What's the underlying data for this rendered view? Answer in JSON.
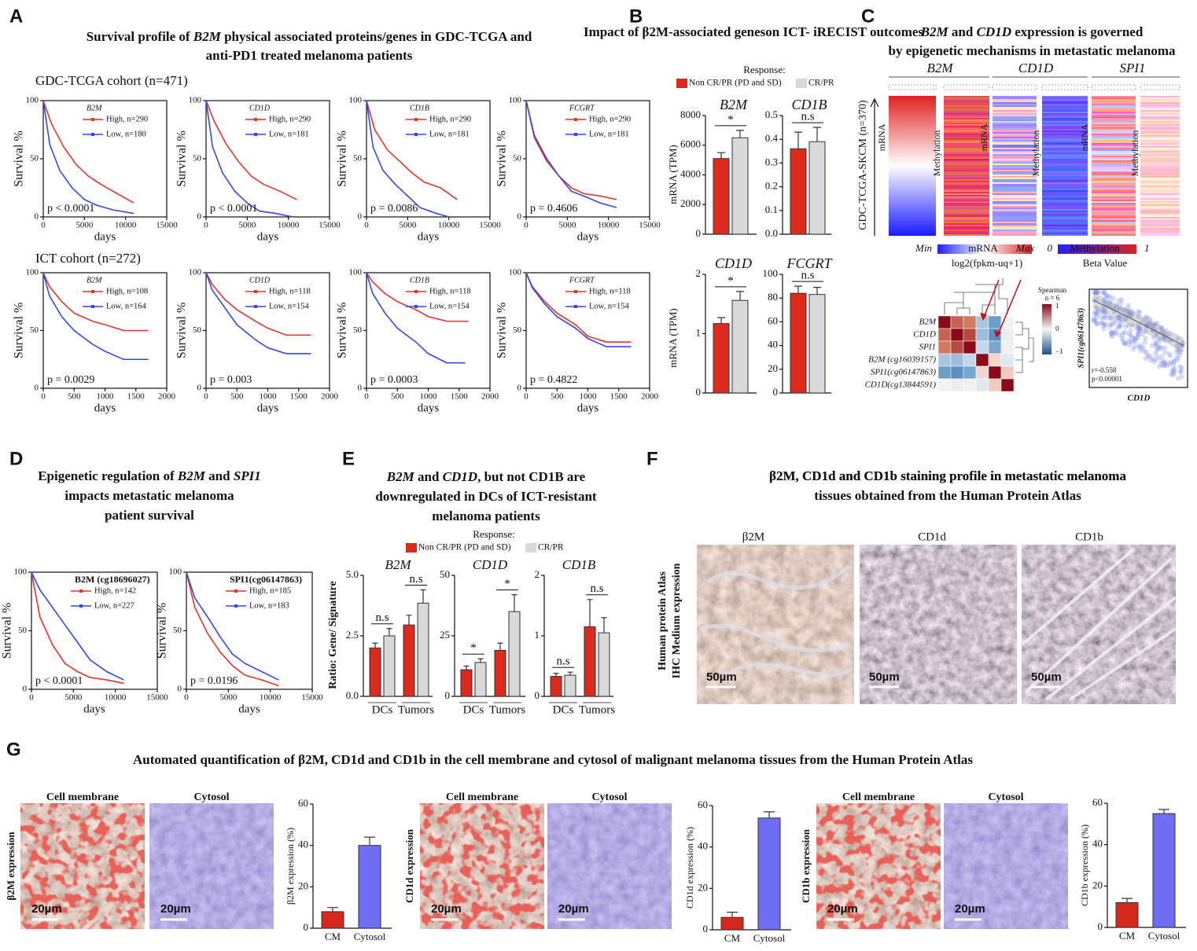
{
  "panel_labels": [
    "A",
    "B",
    "C",
    "D",
    "E",
    "F",
    "G"
  ],
  "km": {
    "ylabel": "Survival %",
    "xlabel": "days",
    "ylim": [
      0,
      100
    ],
    "yticks": [
      0,
      50,
      100
    ],
    "high_color": "#e5332a",
    "low_color": "#3448e6"
  },
  "A": {
    "title": [
      [
        "Survival profile of ",
        "B2M",
        " physical associated proteins/genes in  GDC-TCGA and"
      ],
      [
        "anti-PD1 treated melanoma patients"
      ]
    ],
    "cohorts": [
      "GDC-TCGA cohort (n=471)",
      "ICT cohort (n=272)"
    ],
    "plots": [
      {
        "gene": "B2M",
        "xlim": [
          0,
          15000
        ],
        "xticks": [
          0,
          5000,
          10000,
          15000
        ],
        "p": "p < 0.0001",
        "high": {
          "name": "High, n=290",
          "x": [
            0,
            1000,
            2500,
            4000,
            5500,
            7000,
            9000,
            11000
          ],
          "y": [
            100,
            80,
            60,
            45,
            35,
            28,
            20,
            12
          ]
        },
        "low": {
          "name": "Low, n=180",
          "x": [
            0,
            800,
            2000,
            3500,
            5000,
            6500,
            8500,
            11000
          ],
          "y": [
            100,
            62,
            40,
            25,
            15,
            10,
            6,
            3
          ]
        }
      },
      {
        "gene": "CD1D",
        "xlim": [
          0,
          15000
        ],
        "xticks": [
          0,
          5000,
          10000,
          15000
        ],
        "p": "p < 0.0001",
        "high": {
          "name": "High, n=290",
          "x": [
            0,
            1000,
            2500,
            4000,
            5500,
            7000,
            9000,
            11000
          ],
          "y": [
            100,
            82,
            62,
            47,
            35,
            28,
            22,
            15
          ]
        },
        "low": {
          "name": "Low, n=181",
          "x": [
            0,
            800,
            2000,
            3500,
            5000,
            6500,
            8500,
            10500
          ],
          "y": [
            100,
            60,
            38,
            22,
            12,
            5,
            3,
            0
          ]
        }
      },
      {
        "gene": "CD1B",
        "xlim": [
          0,
          15000
        ],
        "xticks": [
          0,
          5000,
          10000,
          15000
        ],
        "p": "p = 0.0086",
        "high": {
          "name": "High, n=290",
          "x": [
            0,
            1000,
            2500,
            4000,
            5500,
            7000,
            9000,
            11000
          ],
          "y": [
            100,
            75,
            58,
            48,
            38,
            30,
            25,
            15
          ]
        },
        "low": {
          "name": "Low, n=181",
          "x": [
            0,
            800,
            2000,
            3500,
            5000,
            6500,
            8500,
            10000
          ],
          "y": [
            100,
            60,
            40,
            28,
            18,
            8,
            3,
            0
          ]
        }
      },
      {
        "gene": "FCGRT",
        "xlim": [
          0,
          15000
        ],
        "xticks": [
          0,
          5000,
          10000,
          15000
        ],
        "p": "p = 0.4606",
        "high": {
          "name": "High, n=290",
          "x": [
            0,
            1000,
            2500,
            4000,
            5500,
            7000,
            9000,
            11000
          ],
          "y": [
            100,
            68,
            48,
            35,
            25,
            20,
            18,
            15
          ]
        },
        "low": {
          "name": "Low, n=181",
          "x": [
            0,
            1000,
            2500,
            4000,
            5500,
            7000,
            9000,
            11000
          ],
          "y": [
            100,
            70,
            50,
            35,
            22,
            18,
            12,
            8
          ]
        }
      },
      {
        "gene": "B2M",
        "xlim": [
          0,
          2000
        ],
        "xticks": [
          0,
          500,
          1000,
          1500,
          2000
        ],
        "p": "p = 0.0029",
        "high": {
          "name": "High, n=108",
          "x": [
            0,
            100,
            300,
            500,
            800,
            1000,
            1300,
            1700
          ],
          "y": [
            100,
            88,
            75,
            65,
            58,
            55,
            50,
            50
          ]
        },
        "low": {
          "name": "Low, n=164",
          "x": [
            0,
            100,
            300,
            500,
            800,
            1000,
            1300,
            1700
          ],
          "y": [
            100,
            80,
            62,
            50,
            38,
            32,
            25,
            25
          ]
        }
      },
      {
        "gene": "CD1D",
        "xlim": [
          0,
          2000
        ],
        "xticks": [
          0,
          500,
          1000,
          1500,
          2000
        ],
        "p": "p = 0.003",
        "high": {
          "name": "High, n=118",
          "x": [
            0,
            100,
            300,
            500,
            800,
            1000,
            1300,
            1700
          ],
          "y": [
            100,
            90,
            77,
            68,
            58,
            52,
            46,
            46
          ]
        },
        "low": {
          "name": "Low, n=154",
          "x": [
            0,
            100,
            300,
            500,
            800,
            1000,
            1300,
            1700
          ],
          "y": [
            100,
            85,
            70,
            55,
            42,
            35,
            30,
            30
          ]
        }
      },
      {
        "gene": "CD1B",
        "xlim": [
          0,
          2000
        ],
        "xticks": [
          0,
          500,
          1000,
          1500,
          2000
        ],
        "p": "p = 0.0003",
        "high": {
          "name": "High, n=118",
          "x": [
            0,
            100,
            300,
            500,
            800,
            1000,
            1300,
            1650
          ],
          "y": [
            100,
            92,
            82,
            75,
            68,
            62,
            58,
            58
          ]
        },
        "low": {
          "name": "Low, n=154",
          "x": [
            0,
            100,
            300,
            500,
            800,
            1000,
            1300,
            1600
          ],
          "y": [
            100,
            82,
            65,
            52,
            40,
            30,
            22,
            22
          ]
        }
      },
      {
        "gene": "FCGRT",
        "xlim": [
          0,
          2000
        ],
        "xticks": [
          0,
          500,
          1000,
          1500,
          2000
        ],
        "p": "p = 0.4822",
        "high": {
          "name": "High, n=118",
          "x": [
            0,
            100,
            300,
            500,
            800,
            1000,
            1300,
            1700
          ],
          "y": [
            100,
            88,
            75,
            65,
            55,
            45,
            40,
            40
          ]
        },
        "low": {
          "name": "Low, n=154",
          "x": [
            0,
            100,
            300,
            500,
            800,
            1000,
            1300,
            1700
          ],
          "y": [
            100,
            87,
            73,
            62,
            52,
            43,
            36,
            36
          ]
        }
      }
    ]
  },
  "B": {
    "title": [
      "Impact of β2M-associated genes",
      "on ICT- iRECIST outcomes"
    ],
    "response": "Response:",
    "legend": [
      "Non CR/PR (PD and SD)",
      "CR/PR"
    ],
    "colors": [
      "#dd2a1f",
      "#d9d9d9"
    ],
    "ylabel": "mRNA (TPM)",
    "plots": [
      {
        "gene": "B2M",
        "ylim": [
          0,
          8000
        ],
        "yticks": [
          0,
          2000,
          4000,
          6000,
          8000
        ],
        "values": [
          5100,
          6500
        ],
        "errors": [
          400,
          500
        ],
        "sig": "*"
      },
      {
        "gene": "CD1B",
        "ylim": [
          0,
          0.5
        ],
        "yticks": [
          {
            "value": 0,
            "label": "0.0"
          },
          0.1,
          0.2,
          0.3,
          0.4,
          0.5
        ],
        "values": [
          0.36,
          0.39
        ],
        "errors": [
          0.07,
          0.06
        ],
        "sig": "n.s"
      },
      {
        "gene": "CD1D",
        "ylim": [
          0,
          2
        ],
        "yticks": [
          0,
          1,
          2
        ],
        "values": [
          1.17,
          1.56
        ],
        "errors": [
          0.1,
          0.15
        ],
        "sig": "*"
      },
      {
        "gene": "FCGRT",
        "ylim": [
          0,
          100
        ],
        "yticks": [
          0,
          20,
          40,
          60,
          80,
          100
        ],
        "values": [
          84,
          83
        ],
        "errors": [
          6,
          6
        ],
        "sig": "n.s"
      }
    ]
  },
  "C": {
    "title": [
      [
        "B2M",
        " and ",
        "CD1D",
        " expression is governed"
      ],
      [
        "by epigenetic mechanisms in metastatic melanoma"
      ]
    ],
    "genes": [
      "B2M",
      "CD1D",
      "SPI1"
    ],
    "cohort": "GDC-TCGA-SKCM (n=370)",
    "mrna": "mRNA",
    "methylation": "Methylation",
    "legend_mrna": [
      "Min",
      "mRNA",
      "Max",
      "log2(fpkm-uq+1)"
    ],
    "legend_meth": [
      "0",
      "Methylation",
      "1",
      "Beta Value"
    ],
    "corr_rows": [
      "B2M",
      "CD1D",
      "SPI1",
      "B2M (cg16039157)",
      "SPI1(cg06147863)",
      "CD1D(cg13844591)"
    ],
    "corr_legend": [
      "Spearman",
      "n = 6",
      "1",
      "0",
      "−1"
    ],
    "scatter": {
      "ylabel": "SPI1(cg06147863)",
      "xlabel": "CD1D",
      "r": "r=-0.558",
      "p": "p<0.00001"
    }
  },
  "D": {
    "title": [
      [
        "Epigenetic regulation of ",
        "B2M",
        " and ",
        "SPI1"
      ],
      [
        "impacts metastatic melanoma"
      ],
      [
        "patient survival"
      ]
    ],
    "plots": [
      {
        "gene": "B2M (cg18696027)",
        "xlim": [
          0,
          15000
        ],
        "xticks": [
          0,
          5000,
          10000,
          15000
        ],
        "p": "p < 0.0001",
        "high": {
          "name": "High, n=142",
          "x": [
            0,
            1000,
            2500,
            4000,
            5500,
            7000,
            9000,
            11000
          ],
          "y": [
            100,
            62,
            38,
            22,
            15,
            10,
            8,
            5
          ]
        },
        "low": {
          "name": "Low, n=227",
          "x": [
            0,
            1000,
            2500,
            4000,
            5500,
            7000,
            9000,
            11000
          ],
          "y": [
            100,
            85,
            70,
            55,
            40,
            25,
            15,
            8
          ]
        }
      },
      {
        "gene": "SPI1(cg06147863)",
        "xlim": [
          0,
          15000
        ],
        "xticks": [
          0,
          5000,
          10000,
          15000
        ],
        "p": "p = 0.0196",
        "high": {
          "name": "High, n=185",
          "x": [
            0,
            1000,
            2500,
            4000,
            5500,
            7000,
            9000,
            11000
          ],
          "y": [
            100,
            70,
            48,
            32,
            20,
            12,
            8,
            3
          ]
        },
        "low": {
          "name": "Low, n=183",
          "x": [
            0,
            1000,
            2500,
            4000,
            5500,
            7000,
            9000,
            11000
          ],
          "y": [
            100,
            78,
            62,
            45,
            30,
            22,
            15,
            8
          ]
        }
      }
    ]
  },
  "E": {
    "title": [
      [
        "B2M",
        " and ",
        "CD1D",
        ", but not CD1B are"
      ],
      [
        "downregulated in DCs of  ICT-resistant"
      ],
      [
        "melanoma patients"
      ]
    ],
    "response": "Response:",
    "legend": [
      "Non CR/PR (PD and SD)",
      "CR/PR"
    ],
    "colors": [
      "#dd2a1f",
      "#d9d9d9"
    ],
    "ylabel": "Ratio: Gene/ Signature",
    "groups": [
      "DCs",
      "Tumors"
    ],
    "plots": [
      {
        "gene": "B2M",
        "ylim": [
          0,
          5
        ],
        "yticks": [
          {
            "value": 0,
            "label": "0.0"
          },
          {
            "value": 2.5,
            "label": "2.5"
          },
          {
            "value": 5,
            "label": "5.0"
          }
        ],
        "values": [
          [
            2.0,
            2.5
          ],
          [
            2.95,
            3.85
          ]
        ],
        "errors": [
          [
            0.2,
            0.3
          ],
          [
            0.4,
            0.55
          ]
        ],
        "sig": [
          "n.s",
          "n.s"
        ]
      },
      {
        "gene": "CD1D",
        "ylim": [
          0,
          50
        ],
        "yticks": [
          0,
          25,
          50
        ],
        "values": [
          [
            11,
            14
          ],
          [
            19,
            35
          ]
        ],
        "errors": [
          [
            1.5,
            1.5
          ],
          [
            3,
            7
          ]
        ],
        "sig": [
          "*",
          "*"
        ]
      },
      {
        "gene": "CD1B",
        "ylim": [
          0,
          2
        ],
        "yticks": [
          0,
          1,
          2
        ],
        "values": [
          [
            0.33,
            0.35
          ],
          [
            1.15,
            1.05
          ]
        ],
        "errors": [
          [
            0.05,
            0.05
          ],
          [
            0.45,
            0.25
          ]
        ],
        "sig": [
          "n.s",
          "n.s"
        ]
      }
    ]
  },
  "F": {
    "title": [
      "β2M, CD1d and CD1b staining profile in metastatic melanoma",
      "tissues obtained from the Human Protein Atlas"
    ],
    "images": [
      "β2M",
      "CD1d",
      "CD1b"
    ],
    "side": [
      "Human protein Atlas",
      "IHC Medium expression"
    ],
    "scale": "50µm"
  },
  "G": {
    "title": "Automated quantification of β2M, CD1d and CD1b in the cell membrane and cytosol of malignant melanoma tissues from the Human Protein Atlas",
    "image_titles": [
      "Cell membrane",
      "Cytosol"
    ],
    "scale": "20µm",
    "categories": [
      "CM",
      "Cytosol"
    ],
    "colors": [
      "#d7281d",
      "#6e6ef2"
    ],
    "ylim": [
      0,
      60
    ],
    "yticks": [
      0,
      20,
      40,
      60
    ],
    "plots": [
      {
        "row_label": "β2M expression",
        "ylabel": "β2M expression (%)",
        "values": [
          8,
          40
        ],
        "errors": [
          2,
          4
        ]
      },
      {
        "row_label": "CD1d expression",
        "ylabel": "CD1d expression (%)",
        "values": [
          6,
          54
        ],
        "errors": [
          2.5,
          3
        ]
      },
      {
        "row_label": "CD1b expression",
        "ylabel": "CD1b expression (%)",
        "values": [
          12,
          55
        ],
        "errors": [
          2,
          2
        ]
      }
    ]
  }
}
